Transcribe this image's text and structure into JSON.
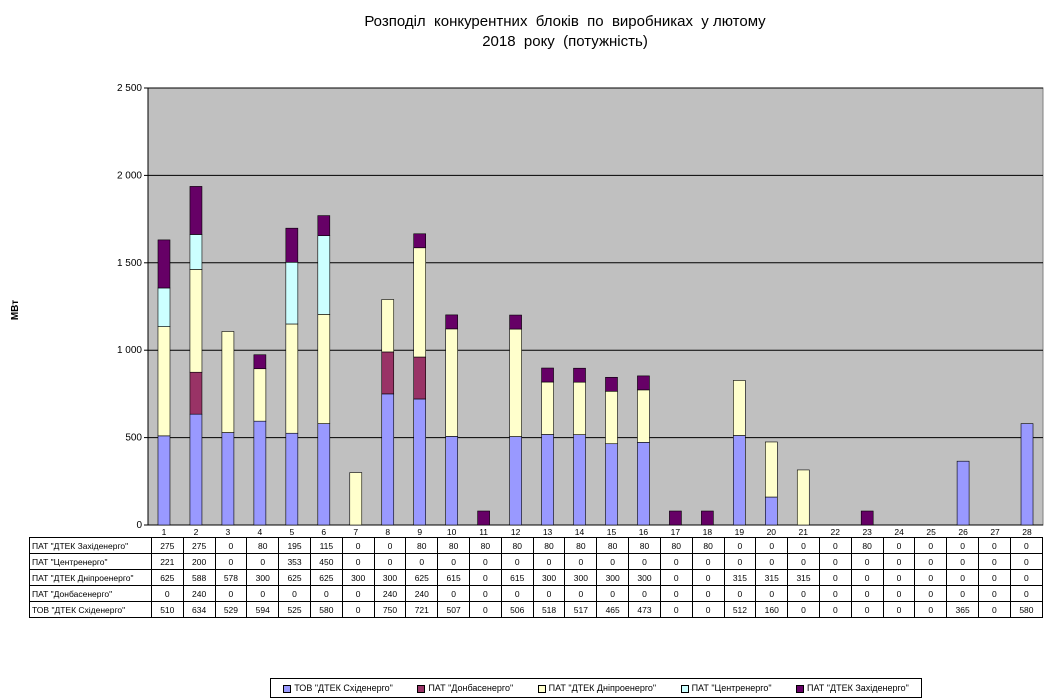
{
  "chart_data": {
    "type": "bar",
    "stacked": true,
    "title_lines": [
      "Розподіл  конкурентних  блоків  по  виробниках  у лютому",
      "2018  року  (потужність)"
    ],
    "ylabel": "МВт",
    "ylim": [
      0,
      2500
    ],
    "yticks": [
      0,
      500,
      1000,
      1500,
      2000,
      2500
    ],
    "ytick_labels": [
      "0",
      "500",
      "1 000",
      "1 500",
      "2 000",
      "2 500"
    ],
    "categories": [
      "1",
      "2",
      "3",
      "4",
      "5",
      "6",
      "7",
      "8",
      "9",
      "10",
      "11",
      "12",
      "13",
      "14",
      "15",
      "16",
      "17",
      "18",
      "19",
      "20",
      "21",
      "22",
      "23",
      "24",
      "25",
      "26",
      "27",
      "28"
    ],
    "grid": true,
    "legend_position": "bottom",
    "series": [
      {
        "name": "ТОВ \"ДТЕК Східенерго\"",
        "color": "#9999ff",
        "values": [
          510,
          634,
          529,
          594,
          525,
          580,
          0,
          750,
          721,
          507,
          0,
          506,
          518,
          517,
          465,
          473,
          0,
          0,
          512,
          160,
          0,
          0,
          0,
          0,
          0,
          365,
          0,
          580
        ]
      },
      {
        "name": "ПАТ \"Донбасенерго\"",
        "color": "#993366",
        "values": [
          0,
          240,
          0,
          0,
          0,
          0,
          0,
          240,
          240,
          0,
          0,
          0,
          0,
          0,
          0,
          0,
          0,
          0,
          0,
          0,
          0,
          0,
          0,
          0,
          0,
          0,
          0,
          0
        ]
      },
      {
        "name": "ПАТ \"ДТЕК Дніпроенерго\"",
        "color": "#ffffcc",
        "values": [
          625,
          588,
          578,
          300,
          625,
          625,
          300,
          300,
          625,
          615,
          0,
          615,
          300,
          300,
          300,
          300,
          0,
          0,
          315,
          315,
          315,
          0,
          0,
          0,
          0,
          0,
          0,
          0
        ]
      },
      {
        "name": "ПАТ \"Центренерго\"",
        "color": "#ccffff",
        "values": [
          221,
          200,
          0,
          0,
          353,
          450,
          0,
          0,
          0,
          0,
          0,
          0,
          0,
          0,
          0,
          0,
          0,
          0,
          0,
          0,
          0,
          0,
          0,
          0,
          0,
          0,
          0,
          0
        ]
      },
      {
        "name": "ПАТ \"ДТЕК Західенерго\"",
        "color": "#660066",
        "values": [
          275,
          275,
          0,
          80,
          195,
          115,
          0,
          0,
          80,
          80,
          80,
          80,
          80,
          80,
          80,
          80,
          80,
          80,
          0,
          0,
          0,
          0,
          80,
          0,
          0,
          0,
          0,
          0
        ]
      }
    ],
    "table_row_order": [
      4,
      3,
      2,
      1,
      0
    ]
  }
}
